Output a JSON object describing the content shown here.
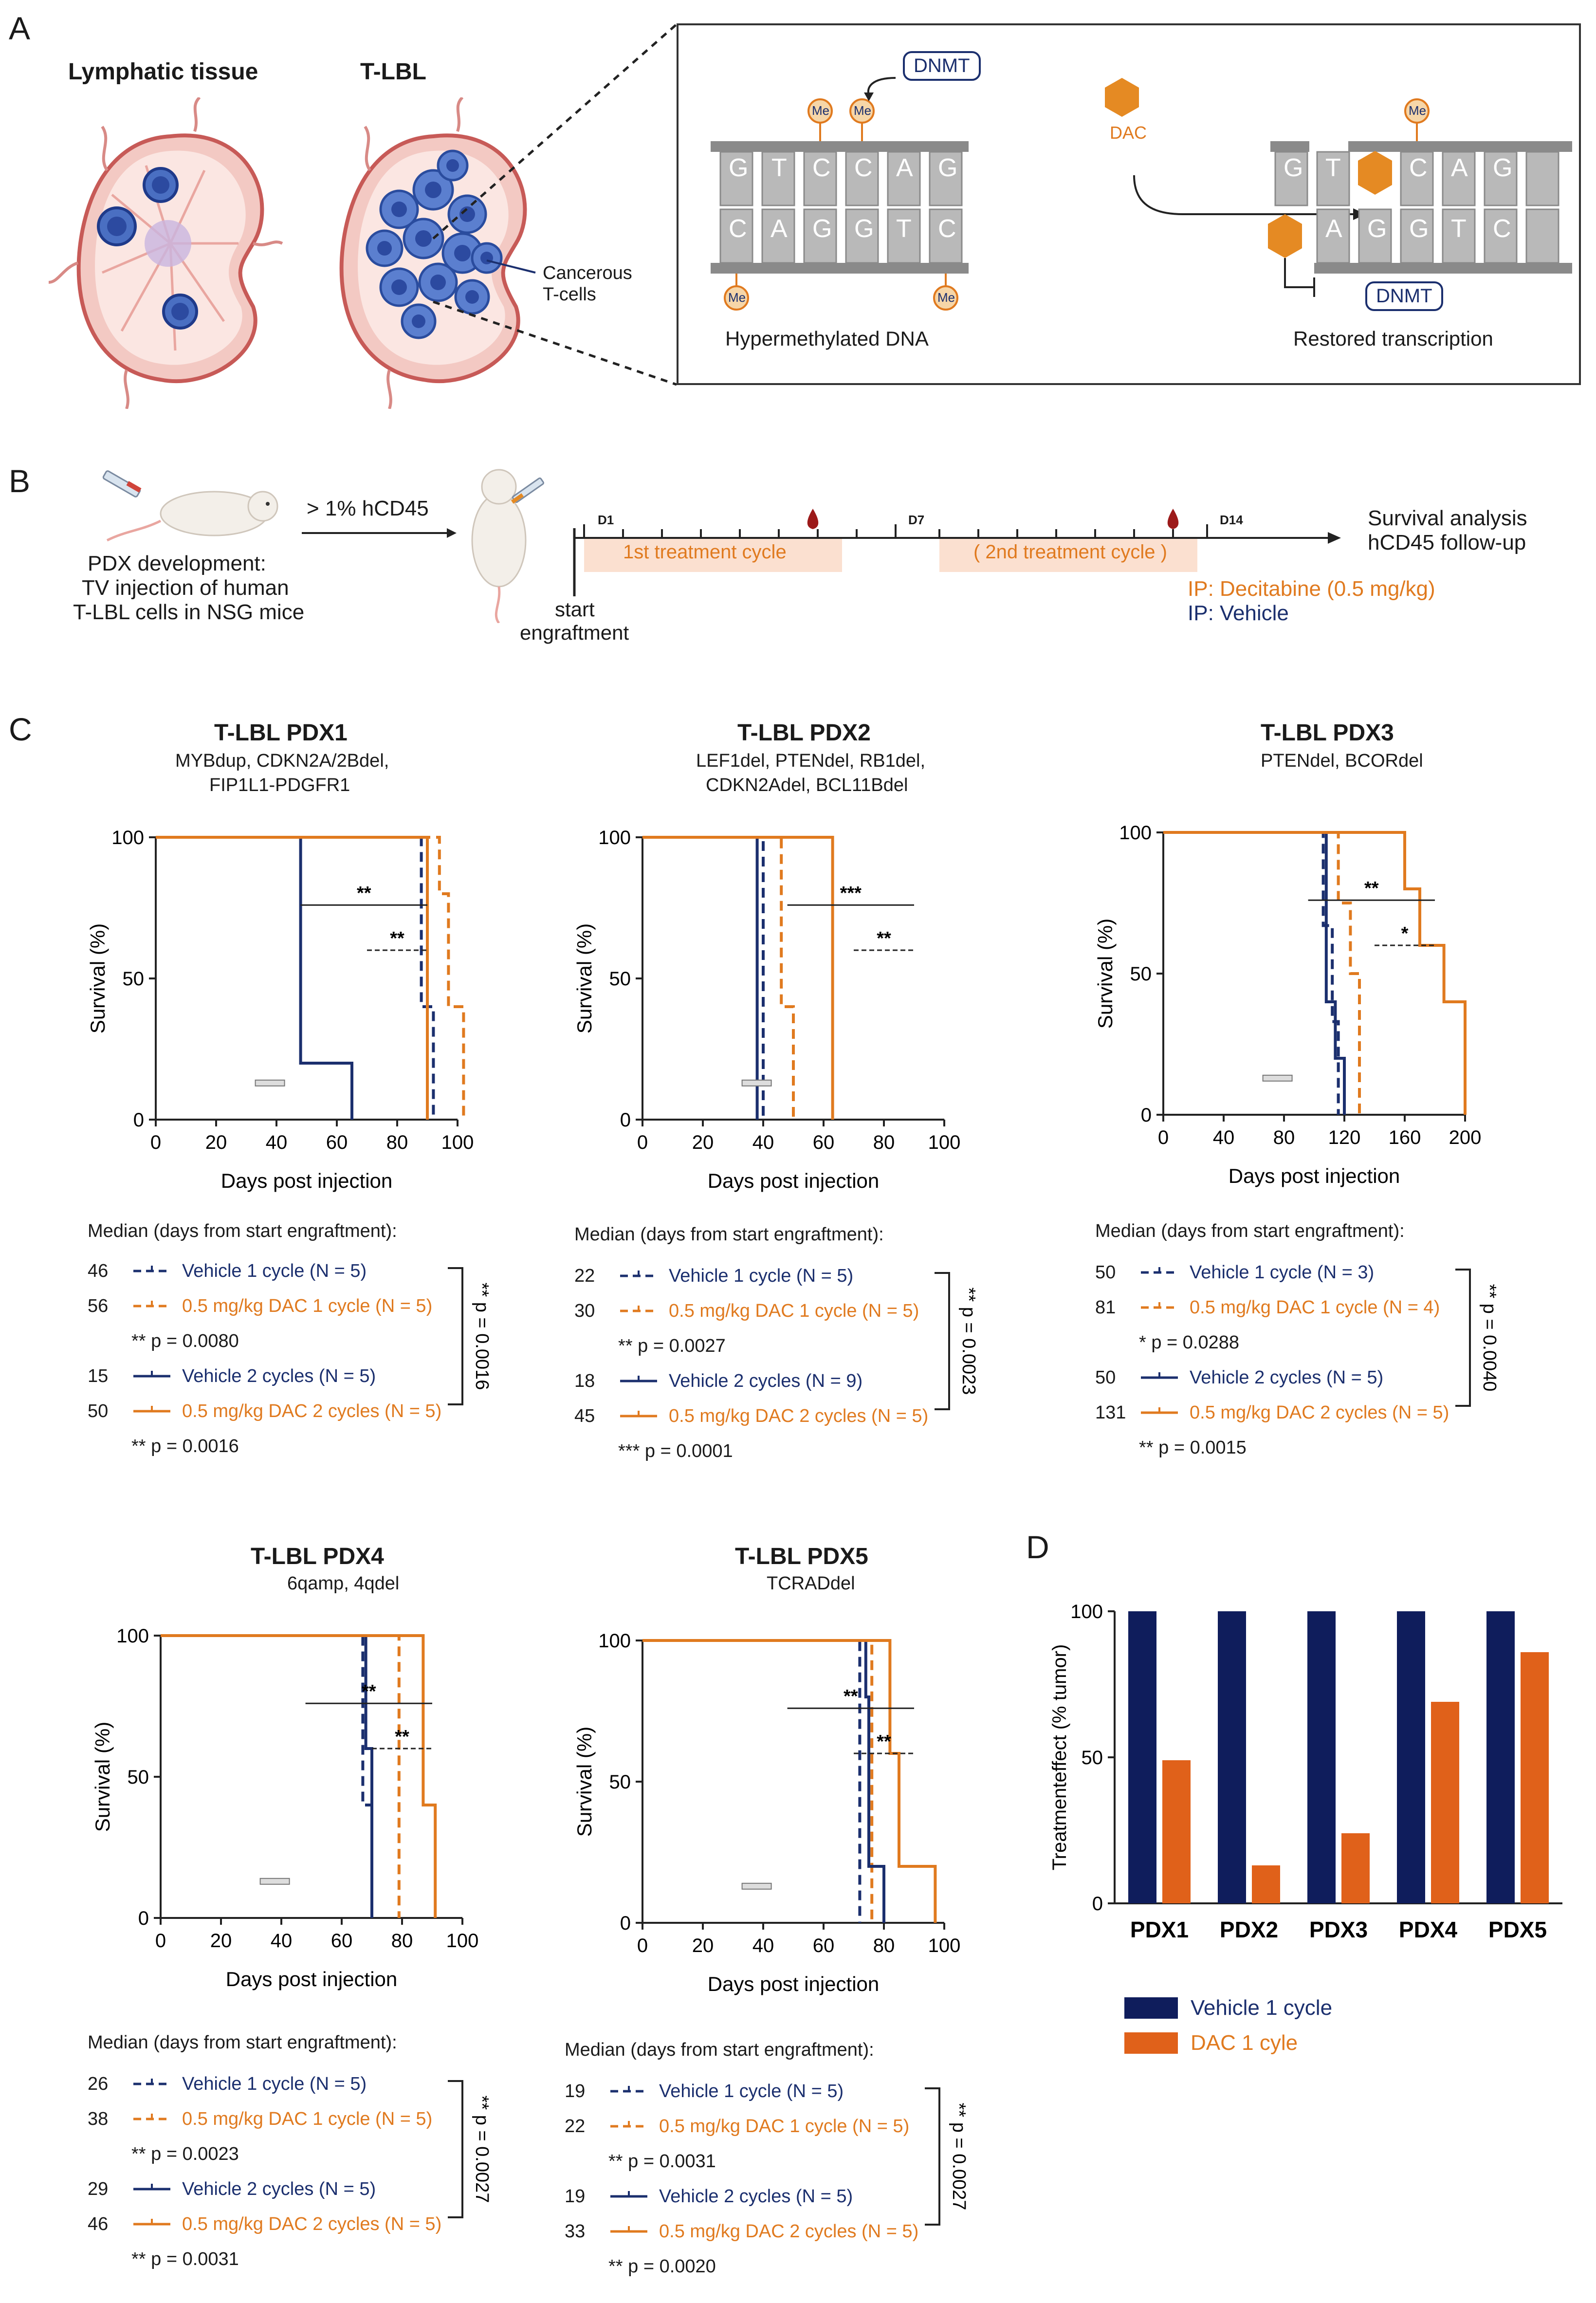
{
  "panels": {
    "a": "A",
    "b": "B",
    "c": "C",
    "d": "D"
  },
  "panel_a": {
    "lymphatic_title": "Lymphatic tissue",
    "tlbl_title": "T-LBL",
    "cancerous_label_1": "Cancerous",
    "cancerous_label_2": "T-cells",
    "dnmt_top": "DNMT",
    "dac_label": "DAC",
    "dnmt_bottom": "DNMT",
    "me": "Me",
    "hyper_caption": "Hypermethylated DNA",
    "restored_caption": "Restored transcription",
    "left_top_bases": [
      "G",
      "T",
      "C",
      "C",
      "A",
      "G"
    ],
    "left_bottom_bases": [
      "C",
      "A",
      "G",
      "G",
      "T",
      "C"
    ],
    "right_top_bases": [
      "G",
      "T",
      "",
      "C",
      "A",
      "G"
    ],
    "right_bottom_bases": [
      "",
      "A",
      "G",
      "G",
      "T",
      "C"
    ]
  },
  "panel_b": {
    "hcd45": "> 1% hCD45",
    "pdx_1": "PDX development:",
    "pdx_2": "TV injection of human",
    "pdx_3": "T-LBL cells in NSG mice",
    "start_1": "start",
    "start_2": "engraftment",
    "d1": "D1",
    "d7": "D7",
    "d14": "D14",
    "cycle1": "1st treatment cycle",
    "cycle2": "( 2nd treatment cycle )",
    "survival_1": "Survival analysis",
    "survival_2": "hCD45 follow-up",
    "ip_dec": "IP: Decitabine (0.5 mg/kg)",
    "ip_veh": "IP: Vehicle"
  },
  "common": {
    "ylabel": "Survival (%)",
    "xlabel": "Days post injection",
    "median_header": "Median (days from start engraftment):"
  },
  "chart_data": [
    {
      "type": "line",
      "id": "pdx1",
      "title": "T-LBL PDX1",
      "subtitle_lines": [
        "MYBdup, CDKN2A/2Bdel,",
        "FIP1L1-PDGFR1"
      ],
      "xlim": [
        0,
        100
      ],
      "ylim": [
        0,
        100
      ],
      "xticks": [
        0,
        20,
        40,
        60,
        80,
        100
      ],
      "yticks": [
        0,
        50,
        100
      ],
      "xlabel": "Days post injection",
      "ylabel": "Survival (%)",
      "series": [
        {
          "name": "Vehicle 1 cycle (N = 5)",
          "color": "#1b2f6e",
          "dash": true,
          "steps": [
            [
              0,
              100
            ],
            [
              88,
              100
            ],
            [
              88,
              40
            ],
            [
              92,
              40
            ],
            [
              92,
              0
            ]
          ]
        },
        {
          "name": "0.5 mg/kg DAC 1 cycle (N = 5)",
          "color": "#e07a1f",
          "dash": true,
          "steps": [
            [
              0,
              100
            ],
            [
              94,
              100
            ],
            [
              94,
              80
            ],
            [
              97,
              80
            ],
            [
              97,
              40
            ],
            [
              102,
              40
            ],
            [
              102,
              0
            ]
          ]
        },
        {
          "name": "Vehicle 2 cycles (N = 5)",
          "color": "#1b2f6e",
          "dash": false,
          "steps": [
            [
              0,
              100
            ],
            [
              48,
              100
            ],
            [
              48,
              20
            ],
            [
              65,
              20
            ],
            [
              65,
              0
            ]
          ]
        },
        {
          "name": "0.5 mg/kg DAC 2 cycles (N = 5)",
          "color": "#e07a1f",
          "dash": false,
          "steps": [
            [
              0,
              100
            ],
            [
              90,
              100
            ],
            [
              90,
              0
            ]
          ]
        }
      ],
      "annotations": [
        "**",
        "**"
      ],
      "legend": [
        {
          "median": "46",
          "label": "Vehicle 1 cycle (N = 5)",
          "color": "#1b2f6e",
          "dash": true
        },
        {
          "median": "56",
          "label": "0.5 mg/kg DAC 1 cycle (N = 5)",
          "color": "#e07a1f",
          "dash": true
        },
        {
          "median": "",
          "label": "** p = 0.0080",
          "color": "",
          "dash": false
        },
        {
          "median": "15",
          "label": "Vehicle 2 cycles (N = 5)",
          "color": "#1b2f6e",
          "dash": false
        },
        {
          "median": "50",
          "label": "0.5 mg/kg DAC 2 cycles (N = 5)",
          "color": "#e07a1f",
          "dash": false
        },
        {
          "median": "",
          "label": "** p = 0.0016",
          "color": "",
          "dash": false
        }
      ],
      "bracket_p": "** p = 0.0016"
    },
    {
      "type": "line",
      "id": "pdx2",
      "title": "T-LBL PDX2",
      "subtitle_lines": [
        "LEF1del, PTENdel, RB1del,",
        "CDKN2Adel, BCL11Bdel"
      ],
      "xlim": [
        0,
        100
      ],
      "ylim": [
        0,
        100
      ],
      "xticks": [
        0,
        20,
        40,
        60,
        80,
        100
      ],
      "yticks": [
        0,
        50,
        100
      ],
      "xlabel": "Days post injection",
      "ylabel": "Survival (%)",
      "series": [
        {
          "name": "Vehicle 1 cycle (N = 5)",
          "color": "#1b2f6e",
          "dash": true,
          "steps": [
            [
              0,
              100
            ],
            [
              40,
              100
            ],
            [
              40,
              0
            ]
          ]
        },
        {
          "name": "0.5 mg/kg DAC 1 cycle (N = 5)",
          "color": "#e07a1f",
          "dash": true,
          "steps": [
            [
              0,
              100
            ],
            [
              46,
              100
            ],
            [
              46,
              40
            ],
            [
              50,
              40
            ],
            [
              50,
              0
            ]
          ]
        },
        {
          "name": "Vehicle 2 cycles (N = 9)",
          "color": "#1b2f6e",
          "dash": false,
          "steps": [
            [
              0,
              100
            ],
            [
              38,
              100
            ],
            [
              38,
              0
            ]
          ]
        },
        {
          "name": "0.5 mg/kg DAC 2 cycles (N = 5)",
          "color": "#e07a1f",
          "dash": false,
          "steps": [
            [
              0,
              100
            ],
            [
              63,
              100
            ],
            [
              63,
              0
            ]
          ]
        }
      ],
      "annotations": [
        "***",
        "**"
      ],
      "legend": [
        {
          "median": "22",
          "label": "Vehicle 1 cycle (N = 5)",
          "color": "#1b2f6e",
          "dash": true
        },
        {
          "median": "30",
          "label": "0.5 mg/kg DAC 1 cycle (N = 5)",
          "color": "#e07a1f",
          "dash": true
        },
        {
          "median": "",
          "label": "** p =  0.0027",
          "color": "",
          "dash": false
        },
        {
          "median": "18",
          "label": "Vehicle 2 cycles (N = 9)",
          "color": "#1b2f6e",
          "dash": false
        },
        {
          "median": "45",
          "label": "0.5 mg/kg DAC 2 cycles (N = 5)",
          "color": "#e07a1f",
          "dash": false
        },
        {
          "median": "",
          "label": "*** p = 0.0001",
          "color": "",
          "dash": false
        }
      ],
      "bracket_p": "** p = 0.0023"
    },
    {
      "type": "line",
      "id": "pdx3",
      "title": "T-LBL PDX3",
      "subtitle_lines": [
        "PTENdel, BCORdel"
      ],
      "xlim": [
        0,
        200
      ],
      "ylim": [
        0,
        100
      ],
      "xticks": [
        0,
        40,
        80,
        120,
        160,
        200
      ],
      "yticks": [
        0,
        50,
        100
      ],
      "xlabel": "Days post injection",
      "ylabel": "Survival (%)",
      "series": [
        {
          "name": "Vehicle 1 cycle (N = 3)",
          "color": "#1b2f6e",
          "dash": true,
          "steps": [
            [
              0,
              100
            ],
            [
              106,
              100
            ],
            [
              106,
              67
            ],
            [
              112,
              67
            ],
            [
              112,
              33
            ],
            [
              116,
              33
            ],
            [
              116,
              0
            ]
          ]
        },
        {
          "name": "0.5 mg/kg DAC 1 cycle (N = 4)",
          "color": "#e07a1f",
          "dash": true,
          "steps": [
            [
              0,
              100
            ],
            [
              116,
              100
            ],
            [
              116,
              75
            ],
            [
              124,
              75
            ],
            [
              124,
              50
            ],
            [
              130,
              50
            ],
            [
              130,
              0
            ]
          ]
        },
        {
          "name": "Vehicle 2 cycles (N = 5)",
          "color": "#1b2f6e",
          "dash": false,
          "steps": [
            [
              0,
              100
            ],
            [
              108,
              100
            ],
            [
              108,
              40
            ],
            [
              114,
              40
            ],
            [
              114,
              20
            ],
            [
              120,
              20
            ],
            [
              120,
              0
            ]
          ]
        },
        {
          "name": "0.5 mg/kg DAC 2 cycles (N = 5)",
          "color": "#e07a1f",
          "dash": false,
          "steps": [
            [
              0,
              100
            ],
            [
              160,
              100
            ],
            [
              160,
              80
            ],
            [
              170,
              80
            ],
            [
              170,
              60
            ],
            [
              186,
              60
            ],
            [
              186,
              40
            ],
            [
              200,
              40
            ],
            [
              200,
              0
            ]
          ]
        }
      ],
      "annotations": [
        "**",
        "*"
      ],
      "legend": [
        {
          "median": "50",
          "label": "Vehicle 1 cycle (N = 3)",
          "color": "#1b2f6e",
          "dash": true
        },
        {
          "median": "81",
          "label": "0.5 mg/kg DAC 1 cycle (N = 4)",
          "color": "#e07a1f",
          "dash": true
        },
        {
          "median": "",
          "label": "* p =  0.0288",
          "color": "",
          "dash": false
        },
        {
          "median": "50",
          "label": "Vehicle 2 cycles (N = 5)",
          "color": "#1b2f6e",
          "dash": false
        },
        {
          "median": "131",
          "label": "0.5 mg/kg DAC 2 cycles (N = 5)",
          "color": "#e07a1f",
          "dash": false
        },
        {
          "median": "",
          "label": "** p = 0.0015",
          "color": "",
          "dash": false
        }
      ],
      "bracket_p": "** p = 0.0040"
    },
    {
      "type": "line",
      "id": "pdx4",
      "title": "T-LBL PDX4",
      "subtitle_lines": [
        "6qamp, 4qdel"
      ],
      "xlim": [
        0,
        100
      ],
      "ylim": [
        0,
        100
      ],
      "xticks": [
        0,
        20,
        40,
        60,
        80,
        100
      ],
      "yticks": [
        0,
        50,
        100
      ],
      "xlabel": "Days post injection",
      "ylabel": "Survival (%)",
      "series": [
        {
          "name": "Vehicle 1 cycle (N = 5)",
          "color": "#1b2f6e",
          "dash": true,
          "steps": [
            [
              0,
              100
            ],
            [
              67,
              100
            ],
            [
              67,
              40
            ],
            [
              70,
              40
            ],
            [
              70,
              0
            ]
          ]
        },
        {
          "name": "0.5 mg/kg DAC 1 cycle (N = 5)",
          "color": "#e07a1f",
          "dash": true,
          "steps": [
            [
              0,
              100
            ],
            [
              79,
              100
            ],
            [
              79,
              0
            ]
          ]
        },
        {
          "name": "Vehicle 2 cycles (N = 5)",
          "color": "#1b2f6e",
          "dash": false,
          "steps": [
            [
              0,
              100
            ],
            [
              68,
              100
            ],
            [
              68,
              60
            ],
            [
              70,
              60
            ],
            [
              70,
              0
            ]
          ]
        },
        {
          "name": "0.5 mg/kg DAC 2 cycles (N = 5)",
          "color": "#e07a1f",
          "dash": false,
          "steps": [
            [
              0,
              100
            ],
            [
              87,
              100
            ],
            [
              87,
              40
            ],
            [
              91,
              40
            ],
            [
              91,
              0
            ]
          ]
        }
      ],
      "annotations": [
        "**",
        "**"
      ],
      "legend": [
        {
          "median": "26",
          "label": "Vehicle 1 cycle (N = 5)",
          "color": "#1b2f6e",
          "dash": true
        },
        {
          "median": "38",
          "label": "0.5 mg/kg DAC 1 cycle (N = 5)",
          "color": "#e07a1f",
          "dash": true
        },
        {
          "median": "",
          "label": "** p = 0.0023",
          "color": "",
          "dash": false
        },
        {
          "median": "29",
          "label": "Vehicle 2 cycles (N = 5)",
          "color": "#1b2f6e",
          "dash": false
        },
        {
          "median": "46",
          "label": "0.5 mg/kg DAC 2 cycles (N = 5)",
          "color": "#e07a1f",
          "dash": false
        },
        {
          "median": "",
          "label": "** p = 0.0031",
          "color": "",
          "dash": false
        }
      ],
      "bracket_p": "** p = 0.0027"
    },
    {
      "type": "line",
      "id": "pdx5",
      "title": "T-LBL PDX5",
      "subtitle_lines": [
        "TCRADdel"
      ],
      "xlim": [
        0,
        100
      ],
      "ylim": [
        0,
        100
      ],
      "xticks": [
        0,
        20,
        40,
        60,
        80,
        100
      ],
      "yticks": [
        0,
        50,
        100
      ],
      "xlabel": "Days post injection",
      "ylabel": "Survival (%)",
      "series": [
        {
          "name": "Vehicle 1 cycle (N = 5)",
          "color": "#1b2f6e",
          "dash": true,
          "steps": [
            [
              0,
              100
            ],
            [
              72,
              100
            ],
            [
              72,
              0
            ]
          ]
        },
        {
          "name": "0.5 mg/kg DAC 1 cycle (N = 5)",
          "color": "#e07a1f",
          "dash": true,
          "steps": [
            [
              0,
              100
            ],
            [
              76,
              100
            ],
            [
              76,
              0
            ]
          ]
        },
        {
          "name": "Vehicle 2 cycles (N = 5)",
          "color": "#1b2f6e",
          "dash": false,
          "steps": [
            [
              0,
              100
            ],
            [
              74,
              100
            ],
            [
              74,
              80
            ],
            [
              75,
              80
            ],
            [
              75,
              20
            ],
            [
              80,
              20
            ],
            [
              80,
              0
            ]
          ]
        },
        {
          "name": "0.5 mg/kg DAC 2 cycles (N = 5)",
          "color": "#e07a1f",
          "dash": false,
          "steps": [
            [
              0,
              100
            ],
            [
              82,
              100
            ],
            [
              82,
              60
            ],
            [
              85,
              60
            ],
            [
              85,
              20
            ],
            [
              97,
              20
            ],
            [
              97,
              0
            ]
          ]
        }
      ],
      "annotations": [
        "**",
        "**"
      ],
      "legend": [
        {
          "median": "19",
          "label": "Vehicle 1 cycle (N = 5)",
          "color": "#1b2f6e",
          "dash": true
        },
        {
          "median": "22",
          "label": "0.5 mg/kg DAC 1 cycle (N = 5)",
          "color": "#e07a1f",
          "dash": true
        },
        {
          "median": "",
          "label": "** p = 0.0031",
          "color": "",
          "dash": false
        },
        {
          "median": "19",
          "label": "Vehicle 2 cycles (N = 5)",
          "color": "#1b2f6e",
          "dash": false
        },
        {
          "median": "33",
          "label": "0.5 mg/kg DAC 2 cycles (N = 5)",
          "color": "#e07a1f",
          "dash": false
        },
        {
          "median": "",
          "label": "** p = 0.0020",
          "color": "",
          "dash": false
        }
      ],
      "bracket_p": "** p = 0.0027"
    },
    {
      "type": "bar",
      "id": "treatment-effect",
      "title": "",
      "ylabel": "Treatmenteffect (% tumor)",
      "xlabel": "",
      "ylim": [
        0,
        100
      ],
      "yticks": [
        0,
        50,
        100
      ],
      "categories": [
        "PDX1",
        "PDX2",
        "PDX3",
        "PDX4",
        "PDX5"
      ],
      "series": [
        {
          "name": "Vehicle 1 cycle",
          "color": "#0f1d5c",
          "values": [
            100,
            100,
            100,
            100,
            100
          ]
        },
        {
          "name": "DAC 1 cyle",
          "color": "#e0611a",
          "values": [
            49,
            13,
            24,
            69,
            86
          ]
        }
      ]
    }
  ]
}
